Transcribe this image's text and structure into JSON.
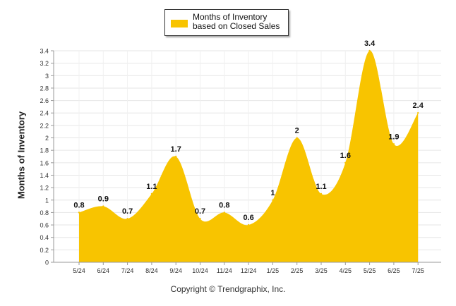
{
  "chart_data": {
    "type": "area",
    "categories": [
      "5/24",
      "6/24",
      "7/24",
      "8/24",
      "9/24",
      "10/24",
      "11/24",
      "12/24",
      "1/25",
      "2/25",
      "3/25",
      "4/25",
      "5/25",
      "6/25",
      "7/25"
    ],
    "series": [
      {
        "name": "Months of Inventory based on Closed Sales",
        "values": [
          0.8,
          0.9,
          0.7,
          1.1,
          1.7,
          0.7,
          0.8,
          0.6,
          1,
          2,
          1.1,
          1.6,
          3.4,
          1.9,
          2.4
        ]
      }
    ],
    "data_labels": [
      "0.8",
      "0.9",
      "0.7",
      "1.1",
      "1.7",
      "0.7",
      "0.8",
      "0.6",
      "1",
      "2",
      "1.1",
      "1.6",
      "3.4",
      "1.9",
      "2.4"
    ],
    "ylabel": "Months of Inventory",
    "ylim": [
      0,
      3.4
    ],
    "yticks": [
      0,
      0.2,
      0.4,
      0.6,
      0.8,
      1,
      1.2,
      1.4,
      1.6,
      1.8,
      2,
      2.2,
      2.4,
      2.6,
      2.8,
      3,
      3.2,
      3.4
    ],
    "ytick_labels": [
      "0",
      "0.2",
      "0.4",
      "0.6",
      "0.8",
      "1",
      "1.2",
      "1.4",
      "1.6",
      "1.8",
      "2",
      "2.2",
      "2.4",
      "2.6",
      "2.8",
      "3",
      "3.2",
      "3.4"
    ],
    "grid": true,
    "legend_position": "top-center",
    "color": "#f8c400",
    "footer": "Copyright © Trendgraphix, Inc."
  }
}
